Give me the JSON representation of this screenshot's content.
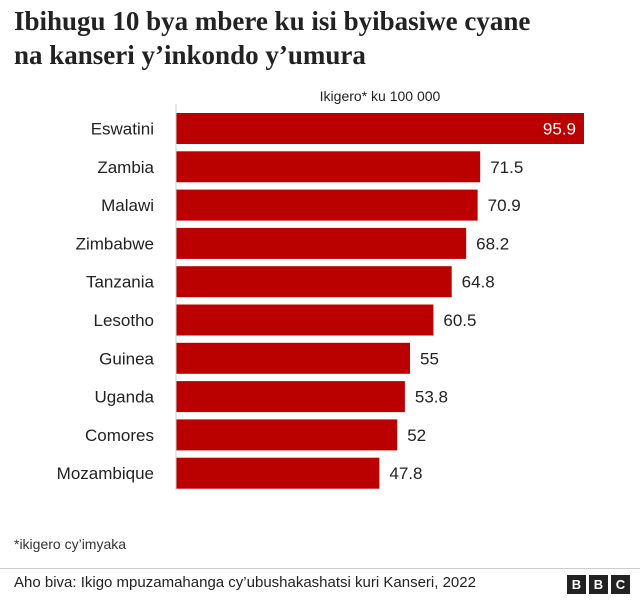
{
  "title_lines": [
    "Ibihugu 10 bya mbere ku isi byibasiwe cyane",
    "na kanseri y’inkondo y’umura"
  ],
  "footnote": "*ikigero cy’imyaka",
  "source": "Aho biva: Ikigo mpuzamahanga cy’ubushakashatsi kuri Kanseri, 2022",
  "logo_letters": [
    "B",
    "B",
    "C"
  ],
  "colors": {
    "bar": "#bb0000",
    "label_inside": "#ffffff",
    "label_outside": "#222222",
    "axis": "#cccccc"
  },
  "chart_data": {
    "type": "bar",
    "orientation": "horizontal",
    "title": "Ibihugu 10 bya mbere ku isi byibasiwe cyane na kanseri y’inkondo y’umura",
    "unit_label": "Ikigero* ku 100 000",
    "categories": [
      "Eswatini",
      "Zambia",
      "Malawi",
      "Zimbabwe",
      "Tanzania",
      "Lesotho",
      "Guinea",
      "Uganda",
      "Comores",
      "Mozambique"
    ],
    "values": [
      95.9,
      71.5,
      70.9,
      68.2,
      64.8,
      60.5,
      55,
      53.8,
      52,
      47.8
    ],
    "value_labels": [
      "95.9",
      "71.5",
      "70.9",
      "68.2",
      "64.8",
      "60.5",
      "55",
      "53.8",
      "52",
      "47.8"
    ],
    "xlim": [
      0,
      95.9
    ],
    "grid": false,
    "legend": "none"
  }
}
